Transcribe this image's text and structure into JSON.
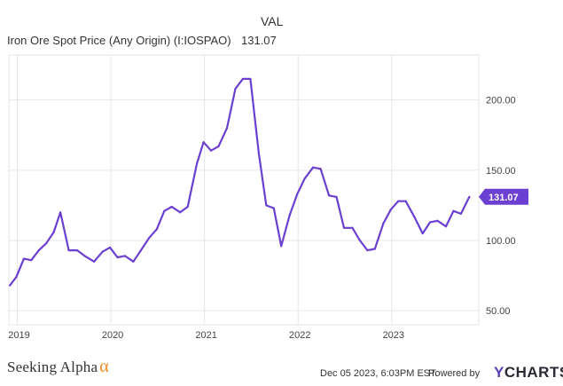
{
  "legend": {
    "header": "VAL",
    "series_name": "Iron Ore Spot Price (Any Origin) (I:IOSPAO)",
    "last_value": "131.07"
  },
  "footer": {
    "brand": "Seeking Alpha",
    "brand_symbol": "α",
    "timestamp": "Dec 05 2023, 6:03PM EST.",
    "powered_by": "Powered by",
    "provider_prefix": "Y",
    "provider_rest": "CHARTS"
  },
  "colors": {
    "line": "#6a3fd1",
    "grid": "#e6e6e6",
    "tick_text": "#444444",
    "badge_bg": "#6a3fd1",
    "badge_text": "#ffffff"
  },
  "chart_data": {
    "type": "line",
    "title": "",
    "xlabel": "",
    "ylabel": "",
    "x_ticks": [
      "2019",
      "2020",
      "2021",
      "2022",
      "2023"
    ],
    "y_ticks": [
      "50.00",
      "100.00",
      "150.00",
      "200.00"
    ],
    "y_axis_side": "right",
    "ylim": [
      40,
      232
    ],
    "xlim": [
      2018.91,
      2023.93
    ],
    "grid": true,
    "last_value_label": "131.07",
    "series": [
      {
        "values": [
          [
            2018.92,
            68
          ],
          [
            2018.99,
            74
          ],
          [
            2019.07,
            87
          ],
          [
            2019.15,
            86
          ],
          [
            2019.23,
            93
          ],
          [
            2019.31,
            98
          ],
          [
            2019.39,
            106
          ],
          [
            2019.46,
            120
          ],
          [
            2019.55,
            93
          ],
          [
            2019.64,
            93
          ],
          [
            2019.72,
            89
          ],
          [
            2019.82,
            85
          ],
          [
            2019.91,
            92
          ],
          [
            2019.99,
            95
          ],
          [
            2020.07,
            88
          ],
          [
            2020.15,
            89
          ],
          [
            2020.24,
            85
          ],
          [
            2020.32,
            93
          ],
          [
            2020.41,
            102
          ],
          [
            2020.49,
            108
          ],
          [
            2020.57,
            121
          ],
          [
            2020.65,
            124
          ],
          [
            2020.74,
            120
          ],
          [
            2020.82,
            124
          ],
          [
            2020.92,
            155
          ],
          [
            2020.99,
            170
          ],
          [
            2021.07,
            164
          ],
          [
            2021.15,
            167
          ],
          [
            2021.24,
            180
          ],
          [
            2021.33,
            208
          ],
          [
            2021.41,
            215
          ],
          [
            2021.49,
            215
          ],
          [
            2021.58,
            162
          ],
          [
            2021.66,
            125
          ],
          [
            2021.74,
            123
          ],
          [
            2021.82,
            96
          ],
          [
            2021.91,
            118
          ],
          [
            2021.99,
            133
          ],
          [
            2022.07,
            144
          ],
          [
            2022.16,
            152
          ],
          [
            2022.24,
            151
          ],
          [
            2022.33,
            132
          ],
          [
            2022.41,
            131
          ],
          [
            2022.49,
            109
          ],
          [
            2022.58,
            109
          ],
          [
            2022.66,
            100
          ],
          [
            2022.74,
            93
          ],
          [
            2022.82,
            94
          ],
          [
            2022.91,
            112
          ],
          [
            2022.99,
            122
          ],
          [
            2023.07,
            128
          ],
          [
            2023.15,
            128
          ],
          [
            2023.24,
            117
          ],
          [
            2023.33,
            105
          ],
          [
            2023.41,
            113
          ],
          [
            2023.49,
            114
          ],
          [
            2023.58,
            110
          ],
          [
            2023.66,
            121
          ],
          [
            2023.74,
            119
          ],
          [
            2023.83,
            131.07
          ]
        ]
      }
    ]
  }
}
